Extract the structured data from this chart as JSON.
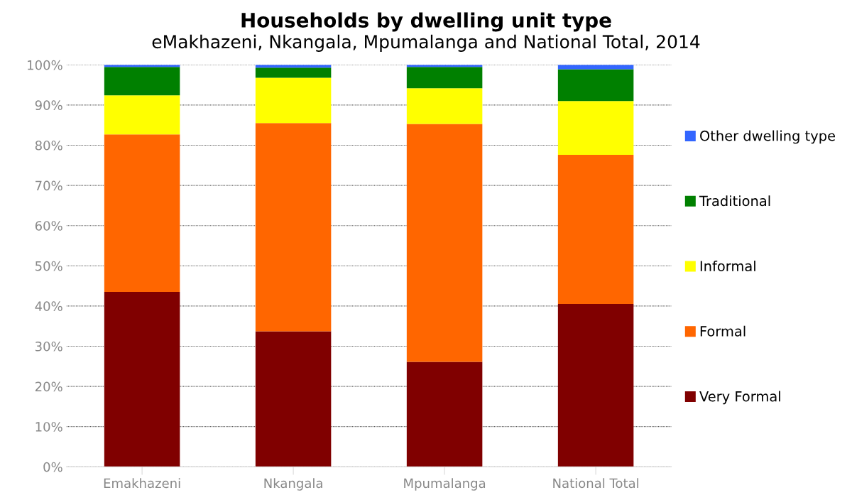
{
  "chart_data": {
    "type": "bar",
    "stacked": true,
    "title": "Households by dwelling unit type",
    "subtitle": "eMakhazeni, Nkangala, Mpumalanga and National Total, 2014",
    "categories": [
      "Emakhazeni",
      "Nkangala",
      "Mpumalanga",
      "National Total"
    ],
    "series": [
      {
        "name": "Very Formal",
        "color": "#800000",
        "values": [
          43.5,
          33.7,
          26.1,
          40.5
        ]
      },
      {
        "name": "Formal",
        "color": "#ff6600",
        "values": [
          39.2,
          51.8,
          59.2,
          37.1
        ]
      },
      {
        "name": "Informal",
        "color": "#ffff00",
        "values": [
          9.7,
          11.3,
          8.9,
          13.4
        ]
      },
      {
        "name": "Traditional",
        "color": "#008000",
        "values": [
          7.1,
          2.5,
          5.3,
          7.9
        ]
      },
      {
        "name": "Other dwelling type",
        "color": "#3366ff",
        "values": [
          0.5,
          0.7,
          0.5,
          1.1
        ]
      }
    ],
    "ylim": [
      0,
      100
    ],
    "yticks": [
      {
        "value": 0,
        "label": "0%"
      },
      {
        "value": 10,
        "label": "10%"
      },
      {
        "value": 20,
        "label": "20%"
      },
      {
        "value": 30,
        "label": "30%"
      },
      {
        "value": 40,
        "label": "40%"
      },
      {
        "value": 50,
        "label": "50%"
      },
      {
        "value": 60,
        "label": "60%"
      },
      {
        "value": 70,
        "label": "70%"
      },
      {
        "value": 80,
        "label": "80%"
      },
      {
        "value": 90,
        "label": "90%"
      },
      {
        "value": 100,
        "label": "100%"
      }
    ],
    "grid": "y",
    "legend": "right"
  }
}
